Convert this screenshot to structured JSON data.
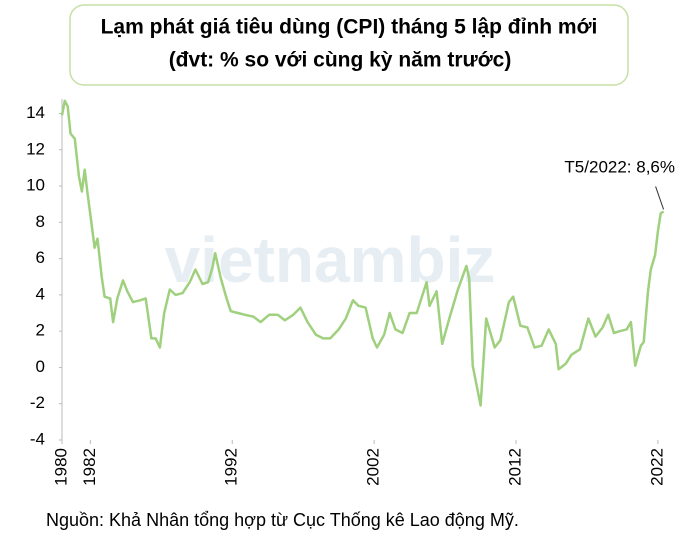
{
  "chart_data": {
    "type": "line",
    "title": "Lạm phát giá tiêu dùng (CPI) tháng 5 lập đỉnh mới",
    "subtitle": "(đvt: % so với cùng kỳ năm trước)",
    "source": "Nguồn: Khả Nhân tổng hợp từ Cục Thống kê Lao động Mỹ.",
    "watermark": "vietnambiz",
    "annotation": "T5/2022: 8,6%",
    "xlim": [
      1980,
      2022.5
    ],
    "xticks": [
      1980,
      1982,
      1992,
      2002,
      2012,
      2022
    ],
    "ylim": [
      -4,
      14.8
    ],
    "yticks": [
      -4,
      -2,
      0,
      2,
      4,
      6,
      8,
      10,
      12,
      14
    ],
    "grid": false,
    "x": [
      1980.0,
      1980.2,
      1980.4,
      1980.6,
      1980.9,
      1981.2,
      1981.4,
      1981.6,
      1981.8,
      1982.0,
      1982.3,
      1982.5,
      1982.8,
      1983.0,
      1983.4,
      1983.6,
      1983.9,
      1984.3,
      1984.6,
      1985.0,
      1985.5,
      1985.9,
      1986.3,
      1986.6,
      1986.9,
      1987.2,
      1987.6,
      1988.0,
      1988.5,
      1989.0,
      1989.4,
      1989.9,
      1990.3,
      1990.6,
      1990.8,
      1991.2,
      1991.6,
      1991.9,
      1992.4,
      1992.9,
      1993.5,
      1994.0,
      1994.6,
      1995.2,
      1995.7,
      1996.3,
      1996.8,
      1997.3,
      1997.9,
      1998.4,
      1998.9,
      1999.5,
      2000.0,
      2000.5,
      2000.9,
      2001.4,
      2001.9,
      2002.2,
      2002.7,
      2003.1,
      2003.5,
      2004.0,
      2004.5,
      2005.0,
      2005.7,
      2005.9,
      2006.4,
      2006.8,
      2007.3,
      2007.9,
      2008.5,
      2008.7,
      2008.95,
      2009.5,
      2009.9,
      2010.5,
      2010.9,
      2011.5,
      2011.8,
      2012.3,
      2012.8,
      2013.3,
      2013.8,
      2014.3,
      2014.8,
      2015.0,
      2015.5,
      2015.9,
      2016.5,
      2017.1,
      2017.6,
      2018.1,
      2018.5,
      2018.9,
      2019.3,
      2019.8,
      2020.1,
      2020.4,
      2020.8,
      2021.0,
      2021.3,
      2021.5,
      2021.8,
      2022.0,
      2022.2,
      2022.4
    ],
    "series": [
      {
        "name": "CPI",
        "color": "#9fd07e",
        "values": [
          13.9,
          14.7,
          14.4,
          12.9,
          12.6,
          10.5,
          9.7,
          10.9,
          9.6,
          8.4,
          6.6,
          7.1,
          5.0,
          3.9,
          3.8,
          2.5,
          3.8,
          4.8,
          4.2,
          3.6,
          3.7,
          3.8,
          1.6,
          1.6,
          1.1,
          3.0,
          4.3,
          4.0,
          4.1,
          4.7,
          5.4,
          4.6,
          4.7,
          5.5,
          6.3,
          4.9,
          3.8,
          3.1,
          3.0,
          2.9,
          2.8,
          2.5,
          2.9,
          2.9,
          2.6,
          2.9,
          3.3,
          2.5,
          1.8,
          1.6,
          1.6,
          2.1,
          2.7,
          3.7,
          3.4,
          3.3,
          1.6,
          1.1,
          1.8,
          3.0,
          2.1,
          1.9,
          3.0,
          3.0,
          4.7,
          3.4,
          4.2,
          1.3,
          2.7,
          4.3,
          5.6,
          4.9,
          0.1,
          -2.1,
          2.7,
          1.1,
          1.5,
          3.6,
          3.9,
          2.3,
          2.2,
          1.1,
          1.2,
          2.1,
          1.3,
          -0.1,
          0.2,
          0.7,
          1.0,
          2.7,
          1.7,
          2.2,
          2.9,
          1.9,
          2.0,
          2.1,
          2.5,
          0.1,
          1.2,
          1.4,
          4.2,
          5.4,
          6.2,
          7.5,
          8.5,
          8.6
        ]
      }
    ]
  }
}
